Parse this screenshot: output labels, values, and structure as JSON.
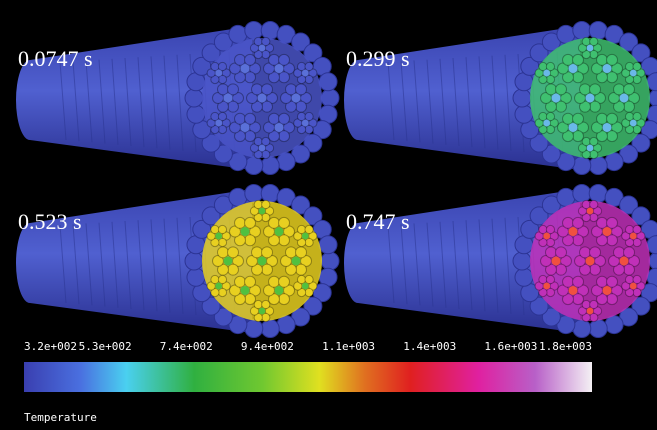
{
  "panels": [
    {
      "time": "0.0747 s",
      "color": "#4a55c8",
      "core": "#5a70d8"
    },
    {
      "time": "0.299 s",
      "color": "#3fc070",
      "core": "#6ab8e8"
    },
    {
      "time": "0.523 s",
      "color": "#e8d020",
      "core": "#50c040"
    },
    {
      "time": "0.747 s",
      "color": "#c030b8",
      "core": "#f05040"
    }
  ],
  "colorbar": {
    "ticks": [
      "3.2e+002",
      "5.3e+002",
      "7.4e+002",
      "9.4e+002",
      "1.1e+003",
      "1.4e+003",
      "1.6e+003",
      "1.8e+003"
    ],
    "title": "Temperature"
  }
}
